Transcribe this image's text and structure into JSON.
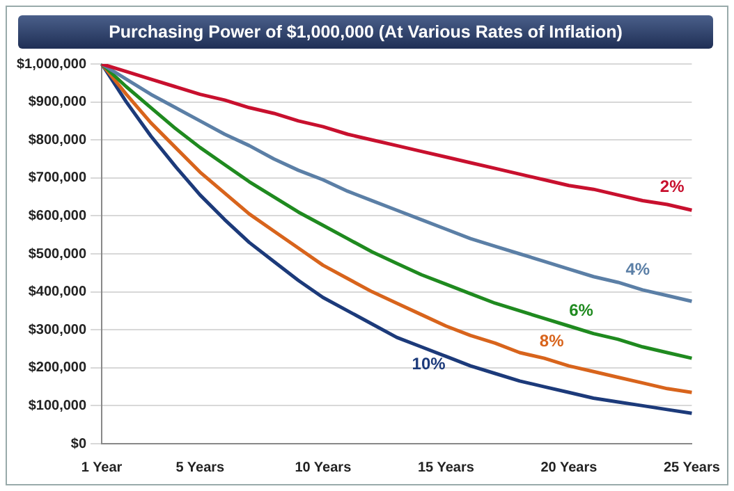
{
  "chart_data": {
    "type": "line",
    "title": "Purchasing Power of $1,000,000 (At Various Rates of Inflation)",
    "categories": [
      "1 Year",
      null,
      null,
      null,
      "5 Years",
      null,
      null,
      null,
      null,
      "10 Years",
      null,
      null,
      null,
      null,
      "15 Years",
      null,
      null,
      null,
      null,
      "20 Years",
      null,
      null,
      null,
      null,
      "25 Years"
    ],
    "series": [
      {
        "name": "2%",
        "color": "#c8102e",
        "values": [
          1000000,
          980000,
          960000,
          940000,
          920000,
          905000,
          885000,
          870000,
          850000,
          835000,
          815000,
          800000,
          785000,
          770000,
          755000,
          740000,
          725000,
          710000,
          695000,
          680000,
          670000,
          655000,
          640000,
          630000,
          615000
        ]
      },
      {
        "name": "4%",
        "color": "#5b7fa6",
        "values": [
          1000000,
          960000,
          920000,
          885000,
          850000,
          815000,
          785000,
          750000,
          720000,
          695000,
          665000,
          640000,
          615000,
          590000,
          565000,
          540000,
          520000,
          500000,
          480000,
          460000,
          440000,
          425000,
          405000,
          390000,
          375000
        ]
      },
      {
        "name": "6%",
        "color": "#1f8a1f",
        "values": [
          1000000,
          940000,
          885000,
          830000,
          780000,
          735000,
          690000,
          650000,
          610000,
          575000,
          540000,
          505000,
          475000,
          445000,
          420000,
          395000,
          370000,
          350000,
          330000,
          310000,
          290000,
          275000,
          255000,
          240000,
          225000
        ]
      },
      {
        "name": "8%",
        "color": "#d8641c",
        "values": [
          1000000,
          920000,
          845000,
          780000,
          715000,
          660000,
          605000,
          560000,
          515000,
          470000,
          435000,
          400000,
          370000,
          340000,
          310000,
          285000,
          265000,
          240000,
          225000,
          205000,
          190000,
          175000,
          160000,
          145000,
          135000
        ]
      },
      {
        "name": "10%",
        "color": "#1c3a7a",
        "values": [
          1000000,
          900000,
          810000,
          730000,
          655000,
          590000,
          530000,
          480000,
          430000,
          385000,
          350000,
          315000,
          280000,
          255000,
          230000,
          205000,
          185000,
          165000,
          150000,
          135000,
          120000,
          110000,
          100000,
          90000,
          80000
        ]
      }
    ],
    "ylim": [
      0,
      1000000
    ],
    "yticks": [
      {
        "value": 0,
        "label": "$0"
      },
      {
        "value": 100000,
        "label": "$100,000"
      },
      {
        "value": 200000,
        "label": "$200,000"
      },
      {
        "value": 300000,
        "label": "$300,000"
      },
      {
        "value": 400000,
        "label": "$400,000"
      },
      {
        "value": 500000,
        "label": "$500,000"
      },
      {
        "value": 600000,
        "label": "$600,000"
      },
      {
        "value": 700000,
        "label": "$700,000"
      },
      {
        "value": 800000,
        "label": "$800,000"
      },
      {
        "value": 900000,
        "label": "$900,000"
      },
      {
        "value": 1000000,
        "label": "$1,000,000"
      }
    ],
    "grid": "y",
    "legend": false,
    "marker": "none",
    "line_style": "solid"
  }
}
